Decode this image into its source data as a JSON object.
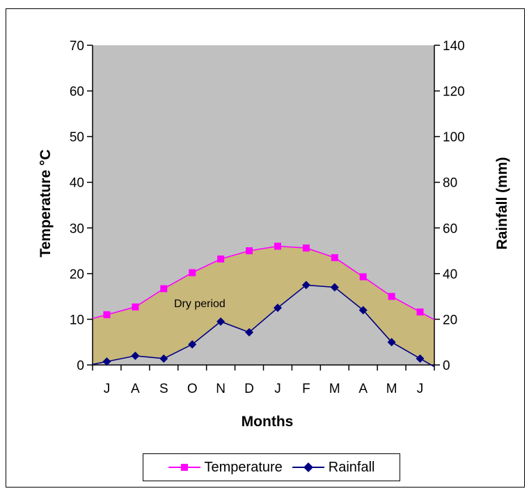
{
  "chart_data": {
    "type": "line",
    "categories": [
      "J",
      "A",
      "S",
      "O",
      "N",
      "D",
      "J",
      "F",
      "M",
      "A",
      "M",
      "J"
    ],
    "xlabel": "Months",
    "ylabel_left": "Temperature °C",
    "ylabel_right": "Rainfall (mm)",
    "ylim_left": [
      0,
      70
    ],
    "ylim_right": [
      0,
      140
    ],
    "yticks_left": [
      "0",
      "10",
      "20",
      "30",
      "40",
      "50",
      "60",
      "70"
    ],
    "yticks_right": [
      "0",
      "20",
      "40",
      "60",
      "80",
      "100",
      "120",
      "140"
    ],
    "series": [
      {
        "name": "Temperature",
        "axis": "left",
        "color": "#ff00ff",
        "marker": "square",
        "values": [
          11,
          12.7,
          16.7,
          20.2,
          23.2,
          25,
          26,
          25.6,
          23.5,
          19.3,
          15,
          11.6
        ]
      },
      {
        "name": "Rainfall",
        "axis": "right",
        "color": "#000080",
        "marker": "diamond",
        "values": [
          1.5,
          4,
          2.8,
          9,
          19,
          14.3,
          25,
          35,
          34,
          24,
          10,
          2.8
        ]
      }
    ],
    "annotations": [
      {
        "text": "Dry period"
      }
    ],
    "fill_color": "#c8b87a",
    "plot_background": "#c0c0c0",
    "legend_position": "bottom"
  }
}
